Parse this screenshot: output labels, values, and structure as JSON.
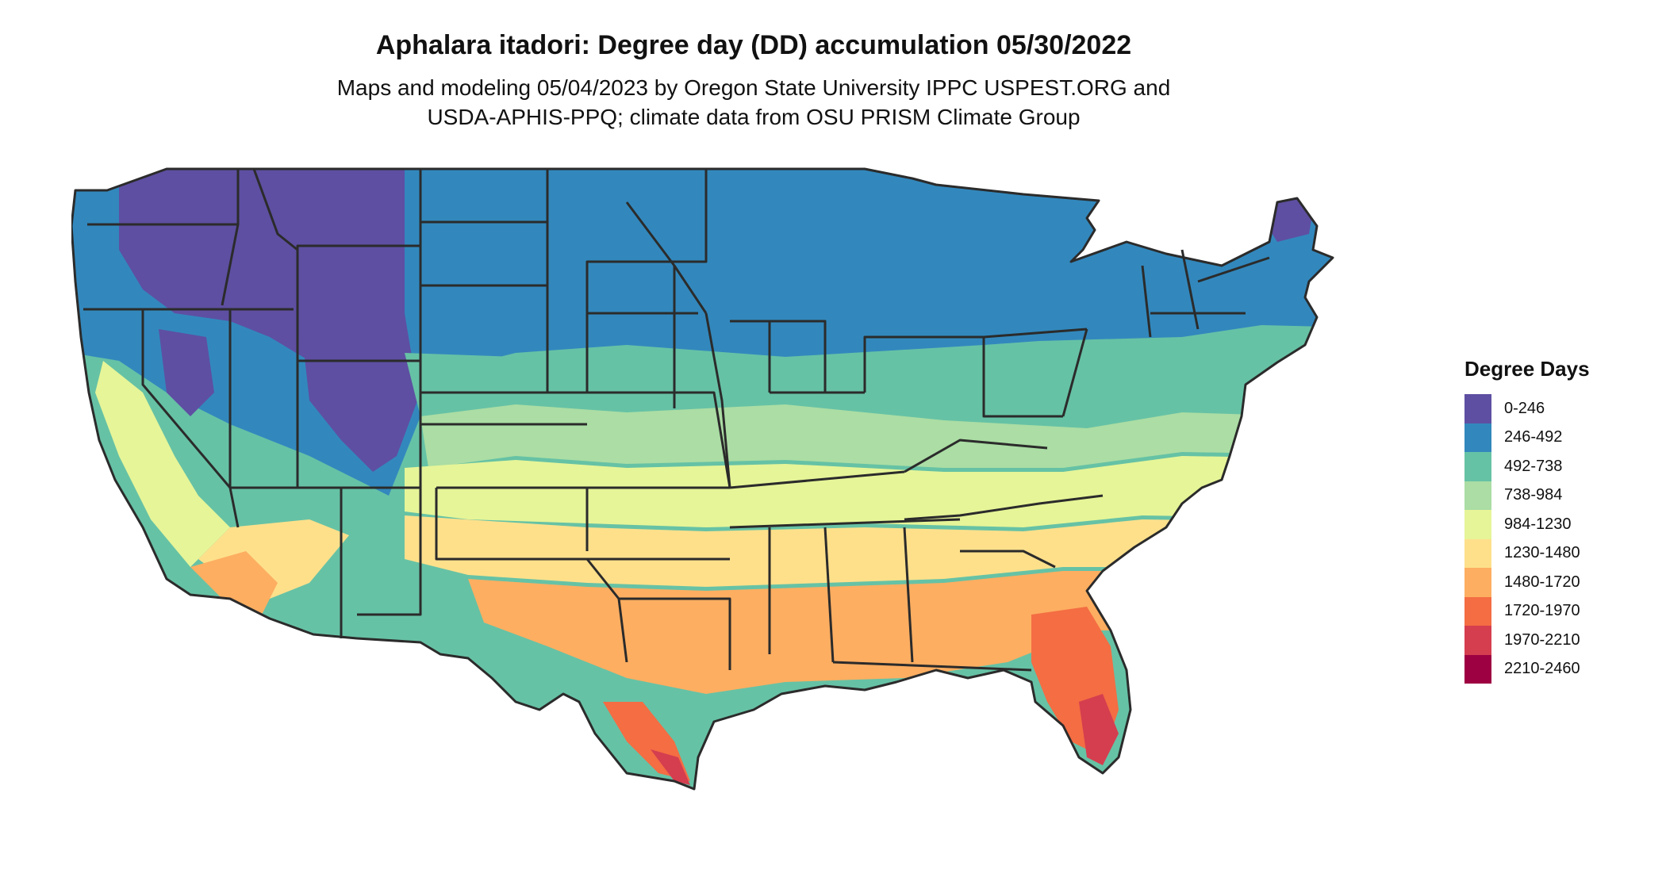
{
  "title": "Aphalara itadori: Degree day (DD) accumulation 05/30/2022",
  "subtitle_lines": [
    "Maps and modeling 05/04/2023 by Oregon State University IPPC USPEST.ORG and",
    "USDA-APHIS-PPQ; climate data from OSU PRISM Climate Group"
  ],
  "legend": {
    "title": "Degree Days",
    "items": [
      {
        "label": "0-246",
        "color": "#5e4fa2"
      },
      {
        "label": "246-492",
        "color": "#3288bd"
      },
      {
        "label": "492-738",
        "color": "#66c2a5"
      },
      {
        "label": "738-984",
        "color": "#abdda4"
      },
      {
        "label": "984-1230",
        "color": "#e6f598"
      },
      {
        "label": "1230-1480",
        "color": "#fee08b"
      },
      {
        "label": "1480-1720",
        "color": "#fdae61"
      },
      {
        "label": "1720-1970",
        "color": "#f46d43"
      },
      {
        "label": "1970-2210",
        "color": "#d53e4f"
      },
      {
        "label": "2210-2460",
        "color": "#9e0142"
      }
    ]
  },
  "map": {
    "region": "Contiguous United States",
    "boundary_color": "#2b2b2b"
  }
}
